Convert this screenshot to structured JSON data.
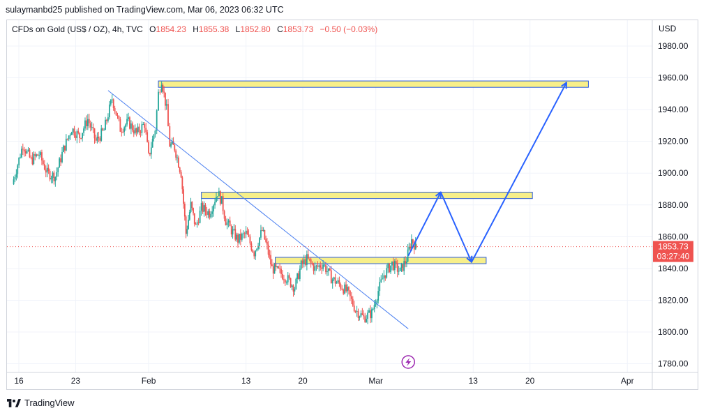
{
  "header": {
    "published": "sulaymanbd25 published on TradingView.com, Mar 06, 2023 06:32 UTC"
  },
  "legend": {
    "symbol": "CFDs on Gold (US$ / OZ), 4h, TVC",
    "open_label": "O",
    "open": "1854.23",
    "high_label": "H",
    "high": "1855.38",
    "low_label": "L",
    "low": "1852.80",
    "close_label": "C",
    "close": "1853.73",
    "change": "−0.50 (−0.03%)"
  },
  "price_scale": {
    "currency": "USD",
    "last_price": "1853.73",
    "countdown": "03:27:40"
  },
  "footer": {
    "brand": "TradingView"
  },
  "colors": {
    "up": "#26a69a",
    "down": "#ef5350",
    "zone_fill": "#f7ef8a",
    "zone_border": "#2a5bd7",
    "trendline": "#4a7ff0",
    "projection": "#2962ff",
    "price_line": "#ef5350",
    "event": "#9c27b0"
  },
  "chart_data": {
    "type": "candlestick",
    "timeframe": "4h",
    "y_axis": {
      "min": 1775,
      "max": 1995,
      "ticks": [
        1780,
        1800,
        1820,
        1840,
        1860,
        1880,
        1900,
        1920,
        1940,
        1960,
        1980
      ]
    },
    "x_axis": {
      "ticks": [
        {
          "label": "16",
          "pos": 0.0
        },
        {
          "label": "23",
          "pos": 7.0
        },
        {
          "label": "Feb",
          "pos": 16.0
        },
        {
          "label": "13",
          "pos": 28.0
        },
        {
          "label": "20",
          "pos": 35.0
        },
        {
          "label": "Mar",
          "pos": 44.0
        },
        {
          "label": "13",
          "pos": 56.0
        },
        {
          "label": "20",
          "pos": 63.0
        },
        {
          "label": "Apr",
          "pos": 75.0
        }
      ]
    },
    "price_path": [
      [
        -0.8,
        1893
      ],
      [
        0.5,
        1918
      ],
      [
        1.5,
        1908
      ],
      [
        2.5,
        1912
      ],
      [
        3.5,
        1900
      ],
      [
        4.5,
        1898
      ],
      [
        5.5,
        1915
      ],
      [
        6.5,
        1928
      ],
      [
        7.5,
        1923
      ],
      [
        8.5,
        1934
      ],
      [
        9.5,
        1920
      ],
      [
        10.5,
        1927
      ],
      [
        11.5,
        1947
      ],
      [
        12.5,
        1928
      ],
      [
        13.5,
        1932
      ],
      [
        14.5,
        1925
      ],
      [
        15.5,
        1931
      ],
      [
        16.0,
        1910
      ],
      [
        16.8,
        1928
      ],
      [
        17.2,
        1950
      ],
      [
        17.6,
        1959
      ],
      [
        18.2,
        1940
      ],
      [
        18.6,
        1918
      ],
      [
        19.2,
        1916
      ],
      [
        20.0,
        1900
      ],
      [
        20.6,
        1862
      ],
      [
        21.2,
        1880
      ],
      [
        21.8,
        1866
      ],
      [
        22.5,
        1878
      ],
      [
        23.5,
        1875
      ],
      [
        24.5,
        1888
      ],
      [
        25.0,
        1882
      ],
      [
        25.5,
        1870
      ],
      [
        26.2,
        1864
      ],
      [
        27.0,
        1858
      ],
      [
        28.0,
        1862
      ],
      [
        29.0,
        1850
      ],
      [
        30.0,
        1864
      ],
      [
        30.6,
        1853
      ],
      [
        31.2,
        1840
      ],
      [
        32.0,
        1838
      ],
      [
        33.0,
        1834
      ],
      [
        34.0,
        1828
      ],
      [
        34.8,
        1842
      ],
      [
        35.5,
        1846
      ],
      [
        36.5,
        1840
      ],
      [
        37.5,
        1843
      ],
      [
        38.5,
        1834
      ],
      [
        39.5,
        1830
      ],
      [
        40.5,
        1825
      ],
      [
        41.5,
        1814
      ],
      [
        42.5,
        1809
      ],
      [
        43.5,
        1812
      ],
      [
        44.3,
        1826
      ],
      [
        45.0,
        1836
      ],
      [
        46.0,
        1843
      ],
      [
        47.0,
        1838
      ],
      [
        47.8,
        1846
      ],
      [
        48.4,
        1858
      ],
      [
        48.9,
        1854
      ]
    ],
    "last": {
      "x": 49.0,
      "open": 1854.23,
      "high": 1855.38,
      "low": 1852.8,
      "close": 1853.73
    },
    "zones": [
      {
        "x1": 17.2,
        "x2": 70.2,
        "y1": 1954,
        "y2": 1958
      },
      {
        "x1": 22.5,
        "x2": 63.3,
        "y1": 1884,
        "y2": 1888
      },
      {
        "x1": 31.6,
        "x2": 57.6,
        "y1": 1843,
        "y2": 1847
      }
    ],
    "trendline": {
      "x1": 11.0,
      "y1": 1952,
      "x2": 48.0,
      "y2": 1802
    },
    "projection": [
      [
        48.0,
        1848
      ],
      [
        52.0,
        1888
      ],
      [
        55.8,
        1844
      ],
      [
        67.5,
        1957
      ]
    ],
    "event_marker_x": 48.0
  }
}
